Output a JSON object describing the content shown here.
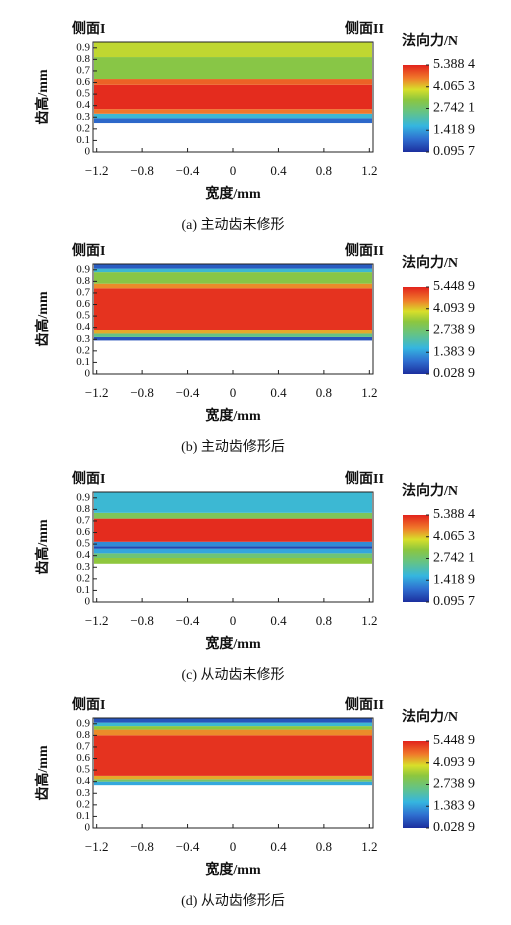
{
  "chart_data": [
    {
      "type": "heatmap",
      "side_left": "侧面I",
      "side_right": "侧面II",
      "xlabel": "宽度/mm",
      "ylabel": "齿高/mm",
      "colorbar_label": "法向力/N",
      "caption": "(a)  主动齿未修形",
      "colormap": "jet",
      "xlim": [
        -1.25,
        1.25
      ],
      "xticks": [
        {
          "value": -1.2,
          "label": "−1.2"
        },
        {
          "value": -0.8,
          "label": "−0.8"
        },
        {
          "value": -0.4,
          "label": "−0.4"
        },
        0,
        0.4,
        0.8,
        1.2
      ],
      "ylim": [
        0,
        0.95
      ],
      "yticks": [
        0,
        0.1,
        0.2,
        0.3,
        0.4,
        0.5,
        0.6,
        0.7,
        0.8,
        0.9
      ],
      "clim": [
        0.0957,
        5.3884
      ],
      "cticks": [
        {
          "value": 0.0957,
          "label": "0.095 7"
        },
        {
          "value": 1.4189,
          "label": "1.418 9"
        },
        {
          "value": 2.7421,
          "label": "2.742 1"
        },
        {
          "value": 4.0653,
          "label": "4.065 3"
        },
        {
          "value": 5.3884,
          "label": "5.388 4"
        }
      ],
      "y_edges": [
        0.25,
        0.29,
        0.33,
        0.37,
        0.58,
        0.63,
        0.82,
        0.95
      ],
      "values": [
        0.8,
        1.8,
        4.6,
        5.3,
        4.8,
        3.2,
        3.7
      ]
    },
    {
      "type": "heatmap",
      "side_left": "侧面I",
      "side_right": "侧面II",
      "xlabel": "宽度/mm",
      "ylabel": "齿高/mm",
      "colorbar_label": "法向力/N",
      "caption": "(b)  主动齿修形后",
      "colormap": "jet",
      "xlim": [
        -1.25,
        1.25
      ],
      "xticks": [
        {
          "value": -1.2,
          "label": "−1.2"
        },
        {
          "value": -0.8,
          "label": "−0.8"
        },
        {
          "value": -0.4,
          "label": "−0.4"
        },
        0,
        0.4,
        0.8,
        1.2
      ],
      "ylim": [
        0,
        0.95
      ],
      "yticks": [
        0,
        0.1,
        0.2,
        0.3,
        0.4,
        0.5,
        0.6,
        0.7,
        0.8,
        0.9
      ],
      "clim": [
        0.0289,
        5.4489
      ],
      "cticks": [
        {
          "value": 0.0289,
          "label": "0.028 9"
        },
        {
          "value": 1.3839,
          "label": "1.383 9"
        },
        {
          "value": 2.7389,
          "label": "2.738 9"
        },
        {
          "value": 4.0939,
          "label": "4.093 9"
        },
        {
          "value": 5.4489,
          "label": "5.448 9"
        }
      ],
      "y_edges": [
        0.29,
        0.32,
        0.35,
        0.38,
        0.74,
        0.78,
        0.88,
        0.91,
        0.95
      ],
      "values": [
        0.5,
        2.5,
        4.3,
        5.3,
        4.5,
        3.2,
        1.8,
        0.6
      ]
    },
    {
      "type": "heatmap",
      "side_left": "侧面I",
      "side_right": "侧面II",
      "xlabel": "宽度/mm",
      "ylabel": "齿高/mm",
      "colorbar_label": "法向力/N",
      "caption": "(c)  从动齿未修形",
      "colormap": "jet",
      "xlim": [
        -1.25,
        1.25
      ],
      "xticks": [
        {
          "value": -1.2,
          "label": "−1.2"
        },
        {
          "value": -0.8,
          "label": "−0.8"
        },
        {
          "value": -0.4,
          "label": "−0.4"
        },
        0,
        0.4,
        0.8,
        1.2
      ],
      "ylim": [
        0,
        0.95
      ],
      "yticks": [
        0,
        0.1,
        0.2,
        0.3,
        0.4,
        0.5,
        0.6,
        0.7,
        0.8,
        0.9
      ],
      "clim": [
        0.0957,
        5.3884
      ],
      "cticks": [
        {
          "value": 0.0957,
          "label": "0.095 7"
        },
        {
          "value": 1.4189,
          "label": "1.418 9"
        },
        {
          "value": 2.7421,
          "label": "2.742 1"
        },
        {
          "value": 4.0653,
          "label": "4.065 3"
        },
        {
          "value": 5.3884,
          "label": "5.388 4"
        }
      ],
      "y_edges": [
        0.33,
        0.38,
        0.42,
        0.46,
        0.48,
        0.52,
        0.72,
        0.77,
        0.95
      ],
      "values": [
        3.3,
        2.7,
        1.5,
        0.4,
        1.2,
        5.3,
        3.0,
        1.8
      ]
    },
    {
      "type": "heatmap",
      "side_left": "侧面I",
      "side_right": "侧面II",
      "xlabel": "宽度/mm",
      "ylabel": "齿高/mm",
      "colorbar_label": "法向力/N",
      "caption": "(d)  从动齿修形后",
      "colormap": "jet",
      "xlim": [
        -1.25,
        1.25
      ],
      "xticks": [
        {
          "value": -1.2,
          "label": "−1.2"
        },
        {
          "value": -0.8,
          "label": "−0.8"
        },
        {
          "value": -0.4,
          "label": "−0.4"
        },
        0,
        0.4,
        0.8,
        1.2
      ],
      "ylim": [
        0,
        0.95
      ],
      "yticks": [
        0,
        0.1,
        0.2,
        0.3,
        0.4,
        0.5,
        0.6,
        0.7,
        0.8,
        0.9
      ],
      "clim": [
        0.0289,
        5.4489
      ],
      "cticks": [
        {
          "value": 0.0289,
          "label": "0.028 9"
        },
        {
          "value": 1.3839,
          "label": "1.383 9"
        },
        {
          "value": 2.7389,
          "label": "2.738 9"
        },
        {
          "value": 4.0939,
          "label": "4.093 9"
        },
        {
          "value": 5.4489,
          "label": "5.448 9"
        }
      ],
      "y_edges": [
        0.37,
        0.4,
        0.42,
        0.45,
        0.8,
        0.85,
        0.88,
        0.91,
        0.95
      ],
      "values": [
        1.5,
        2.8,
        4.3,
        5.3,
        4.5,
        3.3,
        1.8,
        0.5
      ]
    }
  ]
}
